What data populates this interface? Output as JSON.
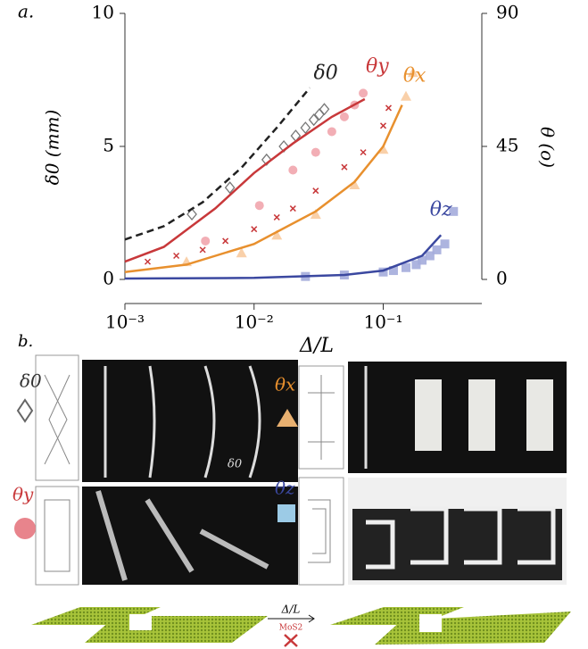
{
  "chart_data": {
    "type": "line",
    "panel_label": "a.",
    "x_label": "Δ/L",
    "y_label": "δ0 (mm)",
    "y2_label": "θ (o)",
    "xscale": "log",
    "xlim": [
      0.001,
      0.58
    ],
    "xticks": [
      {
        "value": 0.001,
        "label": "10⁻³"
      },
      {
        "value": 0.01,
        "label": "10⁻²"
      },
      {
        "value": 0.1,
        "label": "10⁻¹"
      }
    ],
    "ylim": [
      0,
      10
    ],
    "yticks": [
      0,
      5,
      10
    ],
    "y2lim": [
      0,
      90
    ],
    "y2ticks": [
      0,
      45,
      90
    ],
    "series": [
      {
        "name": "δ0",
        "color": "#222222",
        "dash": true,
        "axis": "y",
        "line": {
          "x": [
            0.001,
            0.002,
            0.004,
            0.008,
            0.015,
            0.027
          ],
          "values": [
            1.5,
            2.0,
            2.9,
            4.2,
            5.7,
            7.2
          ]
        },
        "markers": [
          {
            "shape": "diamond",
            "color": "#777777",
            "x": [
              0.0033,
              0.0065,
              0.0125,
              0.017,
              0.021,
              0.025,
              0.029,
              0.032,
              0.035
            ],
            "values": [
              2.45,
              3.45,
              4.5,
              5.0,
              5.4,
              5.7,
              6.0,
              6.2,
              6.4
            ]
          }
        ]
      },
      {
        "name": "θy",
        "color": "#c8383a",
        "dash": false,
        "axis": "y2",
        "line": {
          "x": [
            0.001,
            0.002,
            0.005,
            0.01,
            0.02,
            0.04,
            0.072
          ],
          "values": [
            6,
            11,
            24,
            36,
            46,
            55,
            61
          ]
        },
        "markers": [
          {
            "shape": "circle",
            "color": "#f0a0a8",
            "x": [
              0.0042,
              0.011,
              0.02,
              0.03,
              0.04,
              0.05,
              0.06,
              0.07
            ],
            "values": [
              13,
              25,
              37,
              43,
              50,
              55,
              59,
              63
            ]
          },
          {
            "shape": "cross",
            "color": "#c8383a",
            "x": [
              0.0015,
              0.0025,
              0.004,
              0.006,
              0.01,
              0.015,
              0.02,
              0.03,
              0.05,
              0.07,
              0.1,
              0.11
            ],
            "values": [
              6,
              8,
              10,
              13,
              17,
              21,
              24,
              30,
              38,
              43,
              52,
              58
            ]
          }
        ]
      },
      {
        "name": "θx",
        "color": "#e8902e",
        "dash": false,
        "axis": "y2",
        "line": {
          "x": [
            0.001,
            0.003,
            0.01,
            0.03,
            0.06,
            0.1,
            0.14
          ],
          "values": [
            2.5,
            5,
            12,
            23,
            33,
            45,
            59
          ]
        },
        "markers": [
          {
            "shape": "triangle",
            "color": "#f8c89a",
            "x": [
              0.003,
              0.008,
              0.015,
              0.03,
              0.06,
              0.1,
              0.15,
              0.17
            ],
            "values": [
              6,
              9,
              15,
              22,
              32,
              44,
              62,
              70
            ]
          }
        ]
      },
      {
        "name": "θz",
        "color": "#3b48a0",
        "dash": false,
        "axis": "y2",
        "line": {
          "x": [
            0.001,
            0.01,
            0.05,
            0.1,
            0.2,
            0.28
          ],
          "values": [
            0.3,
            0.5,
            1.5,
            3,
            8,
            15
          ]
        },
        "markers": [
          {
            "shape": "square",
            "color": "#a4acdc",
            "x": [
              0.025,
              0.05,
              0.1,
              0.12,
              0.15,
              0.18,
              0.2,
              0.23,
              0.26,
              0.3,
              0.35
            ],
            "values": [
              1,
              1.5,
              2.5,
              3,
              4,
              5,
              6.5,
              8,
              10,
              12,
              23
            ]
          }
        ]
      }
    ]
  },
  "panel_b": {
    "label": "b.",
    "delta0": "δ0",
    "theta_y": "θy",
    "theta_x": "θx",
    "theta_z": "θz",
    "photo_annotation": "δ0",
    "arrow_label": "Δ/L",
    "material": "MoS2"
  }
}
